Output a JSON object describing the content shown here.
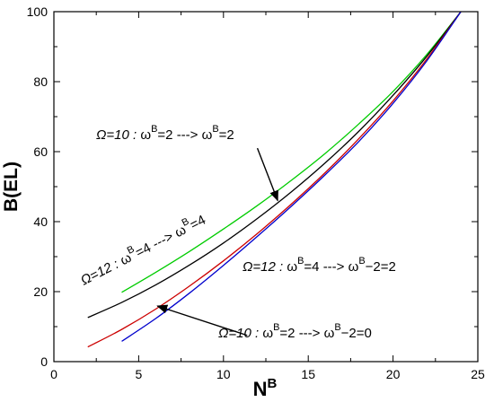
{
  "chart_data": {
    "type": "line",
    "xlabel": "N",
    "xlabel_sup": "B",
    "ylabel": "B(EL)",
    "xlim": [
      0,
      25
    ],
    "ylim": [
      0,
      100
    ],
    "xticks": [
      0,
      5,
      10,
      15,
      20,
      25
    ],
    "yticks": [
      0,
      20,
      40,
      60,
      80,
      100
    ],
    "grid": false,
    "series": [
      {
        "color": "#00cc00",
        "x": [
          4,
          6,
          8,
          10,
          12,
          14,
          16,
          18,
          20,
          22,
          24
        ],
        "y": [
          19.8,
          25.5,
          31.5,
          37.9,
          44.6,
          51.8,
          59.5,
          68.0,
          77.2,
          87.8,
          100
        ]
      },
      {
        "color": "#000000",
        "x": [
          2,
          4,
          6,
          8,
          10,
          12,
          14,
          16,
          18,
          20,
          22,
          24
        ],
        "y": [
          12.6,
          16.9,
          21.9,
          27.6,
          33.9,
          40.9,
          48.5,
          56.8,
          65.9,
          76.1,
          87.3,
          100
        ]
      },
      {
        "color": "#cc0000",
        "x": [
          2,
          4,
          6,
          8,
          10,
          12,
          14,
          16,
          18,
          20,
          22,
          24
        ],
        "y": [
          4.2,
          9.2,
          15.0,
          21.6,
          28.8,
          36.6,
          45.0,
          54.0,
          63.8,
          74.5,
          86.5,
          100
        ]
      },
      {
        "color": "#0000cc",
        "x": [
          4,
          6,
          8,
          10,
          12,
          14,
          16,
          18,
          20,
          22,
          24
        ],
        "y": [
          5.8,
          12.3,
          19.6,
          27.5,
          35.8,
          44.4,
          53.4,
          63.0,
          73.8,
          86.0,
          100
        ]
      }
    ],
    "annotations": [
      {
        "omega": "Ω=10 :",
        "parts": [
          "ω",
          "B",
          "=2 ---> ",
          "ω",
          "B",
          "=2"
        ],
        "arrow_from": [
          12.0,
          61.0
        ],
        "arrow_to": [
          13.2,
          46.0
        ]
      },
      {
        "omega": "Ω=12 :",
        "parts": [
          "ω",
          "B",
          "=4 ---> ",
          "ω",
          "B",
          "=4"
        ],
        "rotate": -27
      },
      {
        "omega": "Ω=12 :",
        "parts": [
          "ω",
          "B",
          "=4 ---> ",
          "ω",
          "B",
          "−2=2"
        ]
      },
      {
        "omega": "Ω=10 :",
        "parts": [
          "ω",
          "B",
          "=2 ---> ",
          "ω",
          "B",
          "−2=0"
        ],
        "arrow_from": [
          11.4,
          7.5
        ],
        "arrow_to": [
          6.1,
          15.9
        ]
      }
    ]
  }
}
